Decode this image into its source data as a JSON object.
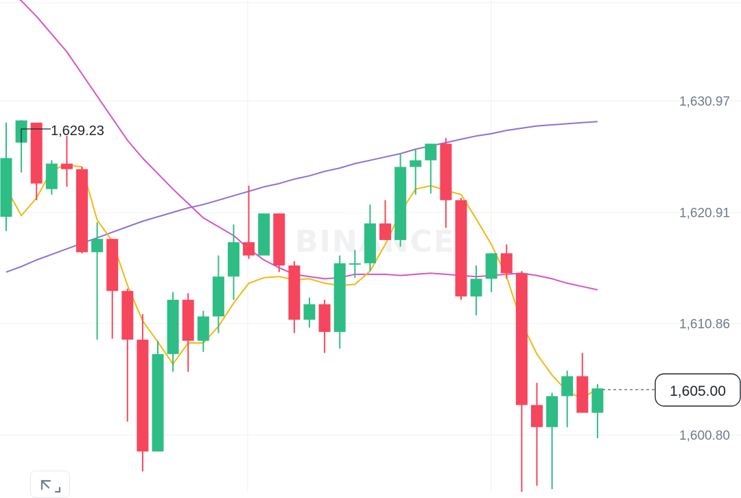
{
  "chart_data": {
    "type": "candlestick",
    "y_axis": {
      "ticks": [
        "1,630.97",
        "1,620.91",
        "1,610.86",
        "1,600.80"
      ],
      "range": [
        1595.5,
        1641.0
      ],
      "position": "right"
    },
    "grid": true,
    "last_price": "1,605.00",
    "high_marker": "1,629.23",
    "watermark": "BINANCE",
    "colors": {
      "up": "#2ebd85",
      "down": "#f6465d",
      "ma_short": "#f0b90b",
      "ma_mid": "#d952c6",
      "ma_long": "#8e6fd6",
      "grid": "#eef0f2",
      "axis_text": "#707a8a"
    },
    "candles": [
      {
        "o": 1620.5,
        "h": 1629.0,
        "l": 1619.2,
        "c": 1625.8
      },
      {
        "o": 1627.2,
        "h": 1629.23,
        "l": 1624.5,
        "c": 1629.2
      },
      {
        "o": 1629.0,
        "h": 1629.0,
        "l": 1622.0,
        "c": 1623.5
      },
      {
        "o": 1623.0,
        "h": 1625.6,
        "l": 1622.5,
        "c": 1625.3
      },
      {
        "o": 1625.3,
        "h": 1627.8,
        "l": 1623.2,
        "c": 1624.8
      },
      {
        "o": 1624.8,
        "h": 1625.0,
        "l": 1617.2,
        "c": 1617.3
      },
      {
        "o": 1617.3,
        "h": 1620.0,
        "l": 1609.4,
        "c": 1618.5
      },
      {
        "o": 1618.5,
        "h": 1618.5,
        "l": 1609.5,
        "c": 1613.8
      },
      {
        "o": 1613.8,
        "h": 1614.0,
        "l": 1602.0,
        "c": 1609.4
      },
      {
        "o": 1609.4,
        "h": 1611.7,
        "l": 1597.5,
        "c": 1599.3
      },
      {
        "o": 1599.3,
        "h": 1609.3,
        "l": 1599.3,
        "c": 1608.1
      },
      {
        "o": 1608.1,
        "h": 1613.7,
        "l": 1606.5,
        "c": 1613.0
      },
      {
        "o": 1613.0,
        "h": 1613.6,
        "l": 1606.5,
        "c": 1609.3
      },
      {
        "o": 1609.3,
        "h": 1612.0,
        "l": 1608.3,
        "c": 1611.5
      },
      {
        "o": 1611.5,
        "h": 1617.0,
        "l": 1610.0,
        "c": 1615.1
      },
      {
        "o": 1615.1,
        "h": 1619.8,
        "l": 1613.0,
        "c": 1618.2
      },
      {
        "o": 1618.2,
        "h": 1623.3,
        "l": 1616.7,
        "c": 1617.0
      },
      {
        "o": 1617.0,
        "h": 1620.8,
        "l": 1617.0,
        "c": 1620.8
      },
      {
        "o": 1620.8,
        "h": 1620.8,
        "l": 1615.5,
        "c": 1616.1
      },
      {
        "o": 1616.1,
        "h": 1616.5,
        "l": 1610.0,
        "c": 1611.2
      },
      {
        "o": 1611.2,
        "h": 1613.2,
        "l": 1610.5,
        "c": 1612.6
      },
      {
        "o": 1612.6,
        "h": 1613.0,
        "l": 1608.2,
        "c": 1610.1
      },
      {
        "o": 1610.1,
        "h": 1617.0,
        "l": 1608.6,
        "c": 1616.3
      },
      {
        "o": 1616.3,
        "h": 1617.5,
        "l": 1615.0,
        "c": 1616.3
      },
      {
        "o": 1616.3,
        "h": 1621.6,
        "l": 1615.6,
        "c": 1619.9
      },
      {
        "o": 1619.9,
        "h": 1622.0,
        "l": 1618.4,
        "c": 1618.4
      },
      {
        "o": 1618.4,
        "h": 1626.2,
        "l": 1617.8,
        "c": 1625.0
      },
      {
        "o": 1625.0,
        "h": 1626.6,
        "l": 1622.5,
        "c": 1625.6
      },
      {
        "o": 1625.6,
        "h": 1627.1,
        "l": 1622.6,
        "c": 1627.1
      },
      {
        "o": 1627.1,
        "h": 1627.6,
        "l": 1619.5,
        "c": 1622.0
      },
      {
        "o": 1622.0,
        "h": 1622.2,
        "l": 1613.0,
        "c": 1613.3
      },
      {
        "o": 1613.3,
        "h": 1616.1,
        "l": 1611.6,
        "c": 1614.9
      },
      {
        "o": 1614.9,
        "h": 1617.2,
        "l": 1613.7,
        "c": 1617.2
      },
      {
        "o": 1617.2,
        "h": 1618.0,
        "l": 1614.9,
        "c": 1615.4
      },
      {
        "o": 1615.4,
        "h": 1615.6,
        "l": 1595.5,
        "c": 1603.5
      },
      {
        "o": 1603.5,
        "h": 1605.5,
        "l": 1596.2,
        "c": 1601.5
      },
      {
        "o": 1601.5,
        "h": 1604.6,
        "l": 1595.9,
        "c": 1604.3
      },
      {
        "o": 1604.3,
        "h": 1606.6,
        "l": 1601.5,
        "c": 1606.1
      },
      {
        "o": 1606.1,
        "h": 1608.2,
        "l": 1602.8,
        "c": 1602.8
      },
      {
        "o": 1602.8,
        "h": 1605.4,
        "l": 1600.5,
        "c": 1605.0
      }
    ],
    "ma_short": [
      1623.1,
      1620.6,
      1622.2,
      1624.7,
      1625.2,
      1625.0,
      1620.2,
      1618.3,
      1614.3,
      1611.1,
      1609.2,
      1607.2,
      1609.1,
      1609.1,
      1610.6,
      1612.7,
      1614.5,
      1615.0,
      1615.1,
      1614.8,
      1614.9,
      1614.5,
      1614.3,
      1614.4,
      1615.6,
      1618.0,
      1620.9,
      1623.0,
      1623.3,
      1622.9,
      1622.5,
      1620.3,
      1618.0,
      1615.1,
      1610.9,
      1608.1,
      1606.2,
      1604.7,
      1604.1,
      1605.0
    ],
    "ma_mid": [
      1641.0,
      1640.0,
      1638.6,
      1637.0,
      1635.4,
      1633.4,
      1631.4,
      1629.4,
      1627.4,
      1625.8,
      1624.4,
      1623.0,
      1621.7,
      1620.4,
      1619.6,
      1618.8,
      1617.6,
      1616.6,
      1615.9,
      1615.3,
      1615.1,
      1614.9,
      1615.0,
      1615.3,
      1615.3,
      1615.3,
      1615.2,
      1615.3,
      1615.4,
      1615.3,
      1615.2,
      1615.1,
      1615.2,
      1615.3,
      1615.4,
      1615.2,
      1614.9,
      1614.5,
      1614.2,
      1613.9
    ],
    "ma_long": [
      1615.5,
      1616.0,
      1616.6,
      1617.1,
      1617.6,
      1618.1,
      1618.6,
      1619.1,
      1619.6,
      1620.1,
      1620.5,
      1620.9,
      1621.3,
      1621.6,
      1622.0,
      1622.4,
      1622.8,
      1623.2,
      1623.5,
      1623.9,
      1624.2,
      1624.6,
      1624.9,
      1625.3,
      1625.6,
      1625.9,
      1626.2,
      1626.6,
      1626.9,
      1627.2,
      1627.5,
      1627.8,
      1628.0,
      1628.3,
      1628.5,
      1628.7,
      1628.8,
      1628.9,
      1629.0,
      1629.1
    ]
  },
  "toolbar": {
    "expand_icon": "expand-diagonal-icon"
  }
}
